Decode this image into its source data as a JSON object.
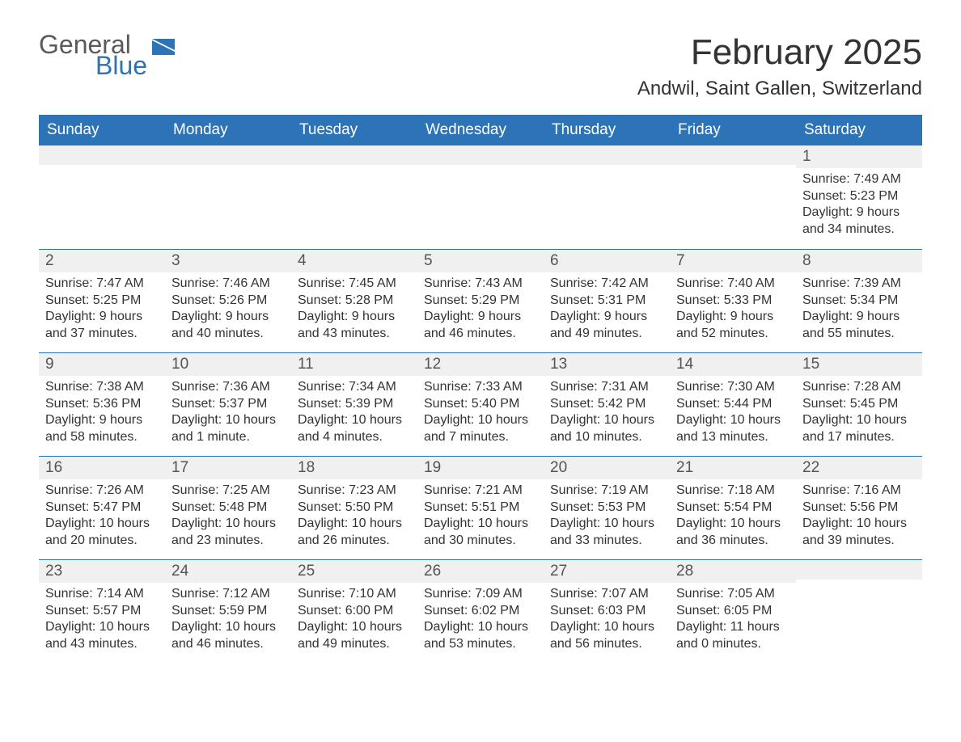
{
  "brand": {
    "word1": "General",
    "word2": "Blue",
    "accent": "#2d73b8",
    "gray": "#5a5a5a"
  },
  "title": "February 2025",
  "location": "Andwil, Saint Gallen, Switzerland",
  "colors": {
    "header_bg": "#2d73b8",
    "header_fg": "#ffffff",
    "row_divider": "#2d73b8",
    "daynum_bg": "#f0f0f0",
    "text": "#333333",
    "page_bg": "#ffffff"
  },
  "weekdays": [
    "Sunday",
    "Monday",
    "Tuesday",
    "Wednesday",
    "Thursday",
    "Friday",
    "Saturday"
  ],
  "weeks": [
    [
      null,
      null,
      null,
      null,
      null,
      null,
      {
        "n": "1",
        "sr": "Sunrise: 7:49 AM",
        "ss": "Sunset: 5:23 PM",
        "dl": "Daylight: 9 hours and 34 minutes."
      }
    ],
    [
      {
        "n": "2",
        "sr": "Sunrise: 7:47 AM",
        "ss": "Sunset: 5:25 PM",
        "dl": "Daylight: 9 hours and 37 minutes."
      },
      {
        "n": "3",
        "sr": "Sunrise: 7:46 AM",
        "ss": "Sunset: 5:26 PM",
        "dl": "Daylight: 9 hours and 40 minutes."
      },
      {
        "n": "4",
        "sr": "Sunrise: 7:45 AM",
        "ss": "Sunset: 5:28 PM",
        "dl": "Daylight: 9 hours and 43 minutes."
      },
      {
        "n": "5",
        "sr": "Sunrise: 7:43 AM",
        "ss": "Sunset: 5:29 PM",
        "dl": "Daylight: 9 hours and 46 minutes."
      },
      {
        "n": "6",
        "sr": "Sunrise: 7:42 AM",
        "ss": "Sunset: 5:31 PM",
        "dl": "Daylight: 9 hours and 49 minutes."
      },
      {
        "n": "7",
        "sr": "Sunrise: 7:40 AM",
        "ss": "Sunset: 5:33 PM",
        "dl": "Daylight: 9 hours and 52 minutes."
      },
      {
        "n": "8",
        "sr": "Sunrise: 7:39 AM",
        "ss": "Sunset: 5:34 PM",
        "dl": "Daylight: 9 hours and 55 minutes."
      }
    ],
    [
      {
        "n": "9",
        "sr": "Sunrise: 7:38 AM",
        "ss": "Sunset: 5:36 PM",
        "dl": "Daylight: 9 hours and 58 minutes."
      },
      {
        "n": "10",
        "sr": "Sunrise: 7:36 AM",
        "ss": "Sunset: 5:37 PM",
        "dl": "Daylight: 10 hours and 1 minute."
      },
      {
        "n": "11",
        "sr": "Sunrise: 7:34 AM",
        "ss": "Sunset: 5:39 PM",
        "dl": "Daylight: 10 hours and 4 minutes."
      },
      {
        "n": "12",
        "sr": "Sunrise: 7:33 AM",
        "ss": "Sunset: 5:40 PM",
        "dl": "Daylight: 10 hours and 7 minutes."
      },
      {
        "n": "13",
        "sr": "Sunrise: 7:31 AM",
        "ss": "Sunset: 5:42 PM",
        "dl": "Daylight: 10 hours and 10 minutes."
      },
      {
        "n": "14",
        "sr": "Sunrise: 7:30 AM",
        "ss": "Sunset: 5:44 PM",
        "dl": "Daylight: 10 hours and 13 minutes."
      },
      {
        "n": "15",
        "sr": "Sunrise: 7:28 AM",
        "ss": "Sunset: 5:45 PM",
        "dl": "Daylight: 10 hours and 17 minutes."
      }
    ],
    [
      {
        "n": "16",
        "sr": "Sunrise: 7:26 AM",
        "ss": "Sunset: 5:47 PM",
        "dl": "Daylight: 10 hours and 20 minutes."
      },
      {
        "n": "17",
        "sr": "Sunrise: 7:25 AM",
        "ss": "Sunset: 5:48 PM",
        "dl": "Daylight: 10 hours and 23 minutes."
      },
      {
        "n": "18",
        "sr": "Sunrise: 7:23 AM",
        "ss": "Sunset: 5:50 PM",
        "dl": "Daylight: 10 hours and 26 minutes."
      },
      {
        "n": "19",
        "sr": "Sunrise: 7:21 AM",
        "ss": "Sunset: 5:51 PM",
        "dl": "Daylight: 10 hours and 30 minutes."
      },
      {
        "n": "20",
        "sr": "Sunrise: 7:19 AM",
        "ss": "Sunset: 5:53 PM",
        "dl": "Daylight: 10 hours and 33 minutes."
      },
      {
        "n": "21",
        "sr": "Sunrise: 7:18 AM",
        "ss": "Sunset: 5:54 PM",
        "dl": "Daylight: 10 hours and 36 minutes."
      },
      {
        "n": "22",
        "sr": "Sunrise: 7:16 AM",
        "ss": "Sunset: 5:56 PM",
        "dl": "Daylight: 10 hours and 39 minutes."
      }
    ],
    [
      {
        "n": "23",
        "sr": "Sunrise: 7:14 AM",
        "ss": "Sunset: 5:57 PM",
        "dl": "Daylight: 10 hours and 43 minutes."
      },
      {
        "n": "24",
        "sr": "Sunrise: 7:12 AM",
        "ss": "Sunset: 5:59 PM",
        "dl": "Daylight: 10 hours and 46 minutes."
      },
      {
        "n": "25",
        "sr": "Sunrise: 7:10 AM",
        "ss": "Sunset: 6:00 PM",
        "dl": "Daylight: 10 hours and 49 minutes."
      },
      {
        "n": "26",
        "sr": "Sunrise: 7:09 AM",
        "ss": "Sunset: 6:02 PM",
        "dl": "Daylight: 10 hours and 53 minutes."
      },
      {
        "n": "27",
        "sr": "Sunrise: 7:07 AM",
        "ss": "Sunset: 6:03 PM",
        "dl": "Daylight: 10 hours and 56 minutes."
      },
      {
        "n": "28",
        "sr": "Sunrise: 7:05 AM",
        "ss": "Sunset: 6:05 PM",
        "dl": "Daylight: 11 hours and 0 minutes."
      },
      null
    ]
  ]
}
